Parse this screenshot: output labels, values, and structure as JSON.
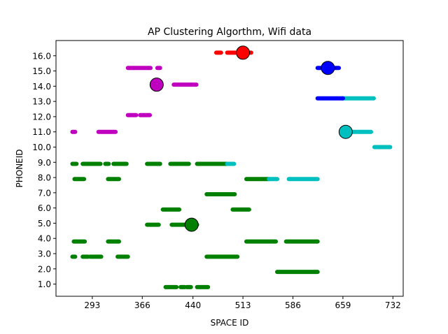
{
  "chart_data": {
    "type": "scatter",
    "title": "AP Clustering Algorthm, Wifi data",
    "xlabel": "SPACE ID",
    "ylabel": "PHONEID",
    "xlim": [
      240,
      747
    ],
    "ylim": [
      0.2,
      17.0
    ],
    "xticks": [
      293,
      366,
      440,
      513,
      586,
      659,
      732
    ],
    "xtick_labels": [
      "293",
      "366",
      "440",
      "513",
      "586",
      "659",
      "732"
    ],
    "yticks": [
      1,
      2,
      3,
      4,
      5,
      6,
      7,
      8,
      9,
      10,
      11,
      12,
      13,
      14,
      15,
      16
    ],
    "ytick_labels": [
      "1.0",
      "2.0",
      "3.0",
      "4.0",
      "5.0",
      "6.0",
      "7.0",
      "8.0",
      "9.0",
      "10.0",
      "11.0",
      "12.0",
      "13.0",
      "14.0",
      "15.0",
      "16.0"
    ],
    "grid": false,
    "series": [
      {
        "color": "#008000",
        "segments": [
          [
            400,
            416,
            0.8
          ],
          [
            422,
            428,
            0.8
          ],
          [
            431,
            437,
            0.8
          ],
          [
            446,
            462,
            0.8
          ],
          [
            563,
            622,
            1.8
          ],
          [
            264,
            268,
            2.8
          ],
          [
            279,
            287,
            2.8
          ],
          [
            290,
            306,
            2.8
          ],
          [
            330,
            345,
            2.8
          ],
          [
            460,
            505,
            2.8
          ],
          [
            266,
            282,
            3.8
          ],
          [
            316,
            332,
            3.8
          ],
          [
            518,
            561,
            3.8
          ],
          [
            576,
            622,
            3.8
          ],
          [
            373,
            390,
            4.9
          ],
          [
            409,
            446,
            4.9
          ],
          [
            396,
            420,
            5.9
          ],
          [
            498,
            522,
            5.9
          ],
          [
            460,
            501,
            6.9
          ],
          [
            267,
            281,
            7.9
          ],
          [
            316,
            332,
            7.9
          ],
          [
            518,
            551,
            7.9
          ],
          [
            264,
            270,
            8.9
          ],
          [
            279,
            305,
            8.9
          ],
          [
            312,
            317,
            8.9
          ],
          [
            324,
            343,
            8.9
          ],
          [
            373,
            392,
            8.9
          ],
          [
            407,
            434,
            8.9
          ],
          [
            446,
            490,
            8.9
          ]
        ]
      },
      {
        "color": "#00bfbf",
        "segments": [
          [
            490,
            500,
            8.9
          ],
          [
            551,
            563,
            7.9
          ],
          [
            580,
            622,
            7.9
          ],
          [
            705,
            728,
            10.0
          ],
          [
            671,
            700,
            11.0
          ],
          [
            658,
            704,
            13.2
          ]
        ]
      },
      {
        "color": "#0000ff",
        "segments": [
          [
            622,
            659,
            13.2
          ],
          [
            622,
            653,
            15.2
          ]
        ]
      },
      {
        "color": "#bf00bf",
        "segments": [
          [
            264,
            268,
            11.0
          ],
          [
            302,
            327,
            11.0
          ],
          [
            345,
            357,
            12.1
          ],
          [
            363,
            377,
            12.1
          ],
          [
            412,
            445,
            14.1
          ],
          [
            345,
            378,
            15.2
          ],
          [
            388,
            392,
            15.2
          ]
        ]
      },
      {
        "color": "#ff0000",
        "segments": [
          [
            474,
            481,
            16.2
          ],
          [
            490,
            502,
            16.2
          ],
          [
            507,
            525,
            16.2
          ]
        ]
      }
    ],
    "centers": [
      {
        "x": 513,
        "y": 16.2,
        "color": "#ff0000"
      },
      {
        "x": 637,
        "y": 15.2,
        "color": "#0000ff"
      },
      {
        "x": 387,
        "y": 14.1,
        "color": "#bf00bf"
      },
      {
        "x": 663,
        "y": 11.0,
        "color": "#00bfbf"
      },
      {
        "x": 438,
        "y": 4.9,
        "color": "#008000"
      }
    ]
  }
}
